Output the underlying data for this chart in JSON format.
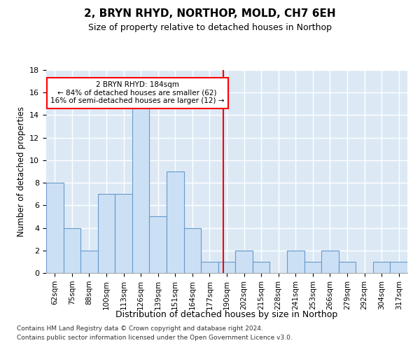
{
  "title1": "2, BRYN RHYD, NORTHOP, MOLD, CH7 6EH",
  "title2": "Size of property relative to detached houses in Northop",
  "xlabel": "Distribution of detached houses by size in Northop",
  "ylabel": "Number of detached properties",
  "categories": [
    "62sqm",
    "75sqm",
    "88sqm",
    "100sqm",
    "113sqm",
    "126sqm",
    "139sqm",
    "151sqm",
    "164sqm",
    "177sqm",
    "190sqm",
    "202sqm",
    "215sqm",
    "228sqm",
    "241sqm",
    "253sqm",
    "266sqm",
    "279sqm",
    "292sqm",
    "304sqm",
    "317sqm"
  ],
  "values": [
    8,
    4,
    2,
    7,
    7,
    15,
    5,
    9,
    4,
    1,
    1,
    2,
    1,
    0,
    2,
    1,
    2,
    1,
    0,
    1,
    1
  ],
  "bar_color": "#cce0f5",
  "bar_edge_color": "#6699cc",
  "reference_line_x": 9.8,
  "annotation_line1": "2 BRYN RHYD: 184sqm",
  "annotation_line2": "← 84% of detached houses are smaller (62)",
  "annotation_line3": "16% of semi-detached houses are larger (12) →",
  "ylim": [
    0,
    18
  ],
  "yticks": [
    0,
    2,
    4,
    6,
    8,
    10,
    12,
    14,
    16,
    18
  ],
  "bg_color": "#dce9f5",
  "grid_color": "#ffffff",
  "footer1": "Contains HM Land Registry data © Crown copyright and database right 2024.",
  "footer2": "Contains public sector information licensed under the Open Government Licence v3.0."
}
